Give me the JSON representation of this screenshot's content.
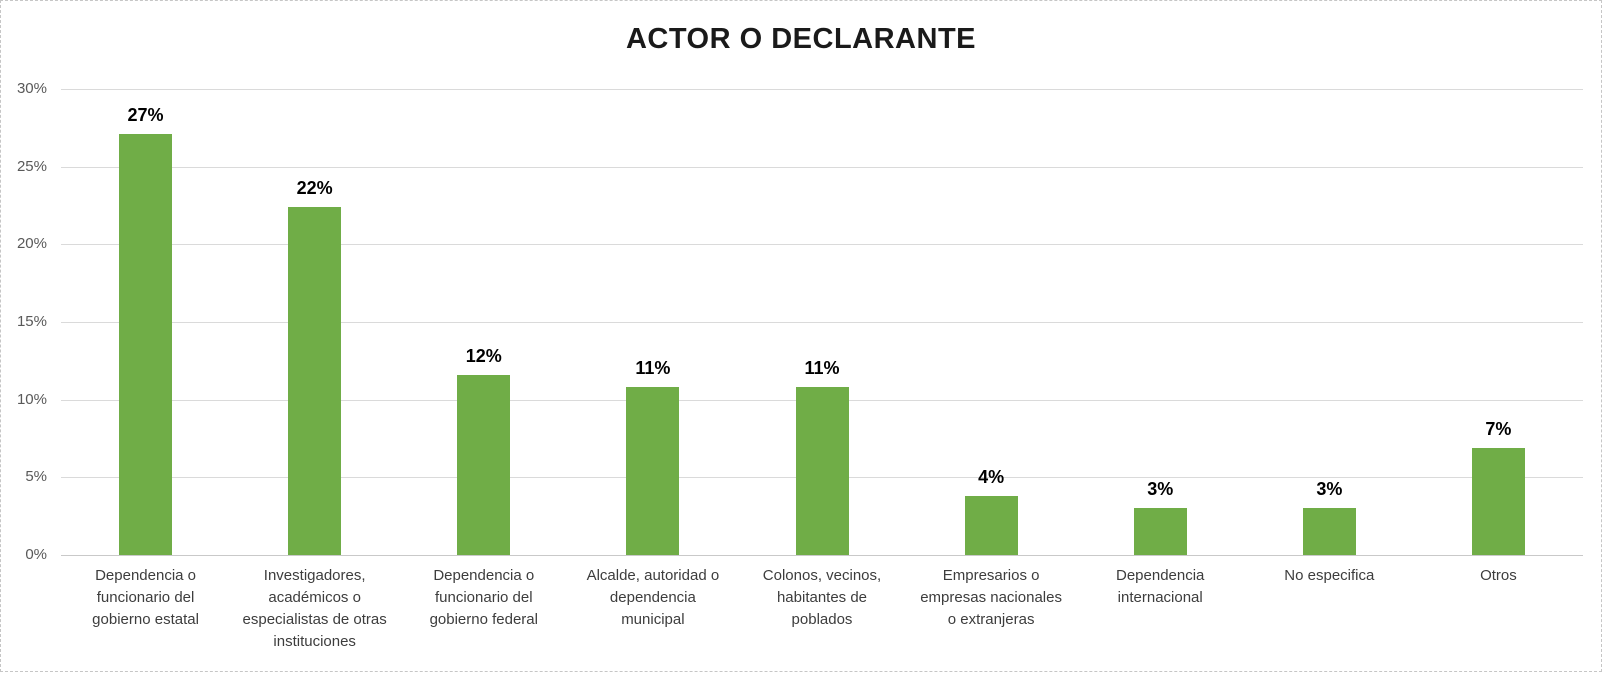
{
  "chart_data": {
    "type": "bar",
    "title": "ACTOR O DECLARANTE",
    "categories": [
      "Dependencia o\nfuncionario del\ngobierno estatal",
      "Investigadores,\nacadémicos o\nespecialistas de otras\ninstituciones",
      "Dependencia o\nfuncionario del\ngobierno federal",
      "Alcalde, autoridad o\ndependencia\nmunicipal",
      "Colonos, vecinos,\nhabitantes de\npoblados",
      "Empresarios o\nempresas nacionales\no extranjeras",
      "Dependencia\ninternacional",
      "No especifica",
      "Otros"
    ],
    "values": [
      27.1,
      22.4,
      11.6,
      10.8,
      10.8,
      3.8,
      3.0,
      3.0,
      6.9
    ],
    "value_labels": [
      "27%",
      "22%",
      "12%",
      "11%",
      "11%",
      "4%",
      "3%",
      "3%",
      "7%"
    ],
    "xlabel": "",
    "ylabel": "",
    "y_ticks": [
      "0%",
      "5%",
      "10%",
      "15%",
      "20%",
      "25%",
      "30%"
    ],
    "y_tick_values": [
      0,
      5,
      10,
      15,
      20,
      25,
      30
    ],
    "ylim": [
      0,
      30
    ],
    "grid": true,
    "legend_position": "none",
    "bar_color": "#70AD47",
    "gridline_color": "#dadada",
    "axis_label_color": "#595959",
    "data_label_color": "#000000"
  }
}
